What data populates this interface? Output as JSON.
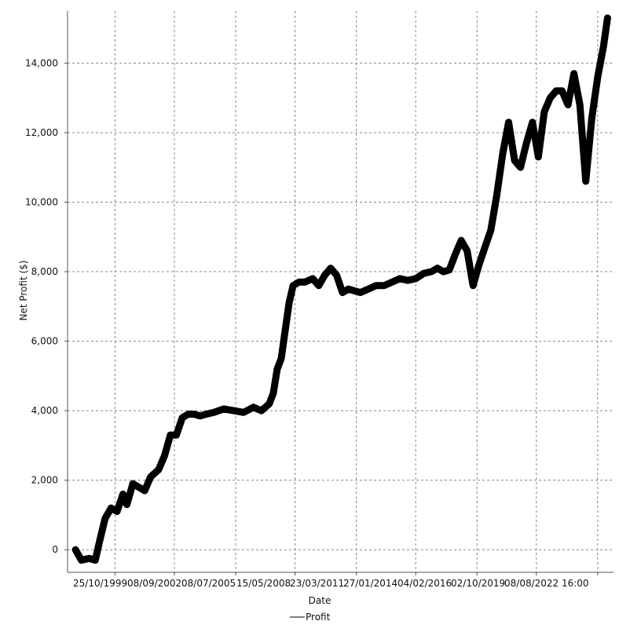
{
  "chart_data": {
    "type": "line",
    "title": "",
    "xlabel": "Date",
    "ylabel": "Net Profit ($)",
    "ylim": [
      -650,
      15500
    ],
    "grid": true,
    "legend_position": "bottom",
    "yticks": [
      0,
      2000,
      4000,
      6000,
      8000,
      10000,
      12000,
      14000
    ],
    "ytick_labels": [
      "0",
      "2,000",
      "4,000",
      "6,000",
      "8,000",
      "10,000",
      "12,000",
      "14,000"
    ],
    "xtick_labels": [
      "25/10/1999",
      "08/09/2002",
      "08/07/2005",
      "15/05/2008",
      "23/03/2011",
      "27/01/2014",
      "04/02/2016",
      "02/10/2019",
      "08/08/2022 16:00"
    ],
    "series": [
      {
        "name": "Profit",
        "color": "#000000",
        "x": [
          1998.0,
          1998.3,
          1998.7,
          1999.0,
          1999.2,
          1999.5,
          1999.8,
          2000.1,
          2000.4,
          2000.6,
          2000.9,
          2001.2,
          2001.5,
          2001.8,
          2002.2,
          2002.5,
          2002.8,
          2003.1,
          2003.4,
          2003.7,
          2004.0,
          2004.3,
          2004.6,
          2005.0,
          2005.5,
          2006.0,
          2006.5,
          2007.0,
          2007.4,
          2007.8,
          2008.0,
          2008.2,
          2008.4,
          2008.6,
          2008.8,
          2009.0,
          2009.3,
          2009.6,
          2010.0,
          2010.3,
          2010.6,
          2010.9,
          2011.2,
          2011.5,
          2011.8,
          2012.1,
          2012.4,
          2012.8,
          2013.2,
          2013.6,
          2014.0,
          2014.4,
          2014.8,
          2015.2,
          2015.6,
          2016.0,
          2016.3,
          2016.6,
          2016.9,
          2017.2,
          2017.5,
          2017.8,
          2018.1,
          2018.4,
          2018.7,
          2019.0,
          2019.3,
          2019.6,
          2019.9,
          2020.2,
          2020.5,
          2020.8,
          2021.1,
          2021.4,
          2021.7,
          2022.0,
          2022.3,
          2022.6,
          2022.9,
          2023.2,
          2023.5,
          2023.8,
          2024.1,
          2024.4,
          2024.7,
          2024.9
        ],
        "values": [
          0,
          -300,
          -250,
          -300,
          200,
          900,
          1200,
          1100,
          1600,
          1300,
          1900,
          1800,
          1700,
          2100,
          2300,
          2700,
          3300,
          3300,
          3800,
          3900,
          3900,
          3850,
          3900,
          3950,
          4050,
          4000,
          3950,
          4100,
          4000,
          4200,
          4500,
          5200,
          5500,
          6300,
          7100,
          7600,
          7700,
          7700,
          7800,
          7600,
          7900,
          8100,
          7900,
          7400,
          7500,
          7450,
          7400,
          7500,
          7600,
          7600,
          7700,
          7800,
          7750,
          7800,
          7950,
          8000,
          8100,
          8000,
          8050,
          8500,
          8900,
          8600,
          7600,
          8200,
          8700,
          9200,
          10200,
          11400,
          12300,
          11200,
          11000,
          11700,
          12300,
          11300,
          12600,
          13000,
          13200,
          13200,
          12800,
          13700,
          12800,
          10600,
          12400,
          13600,
          14500,
          15300
        ]
      }
    ]
  }
}
